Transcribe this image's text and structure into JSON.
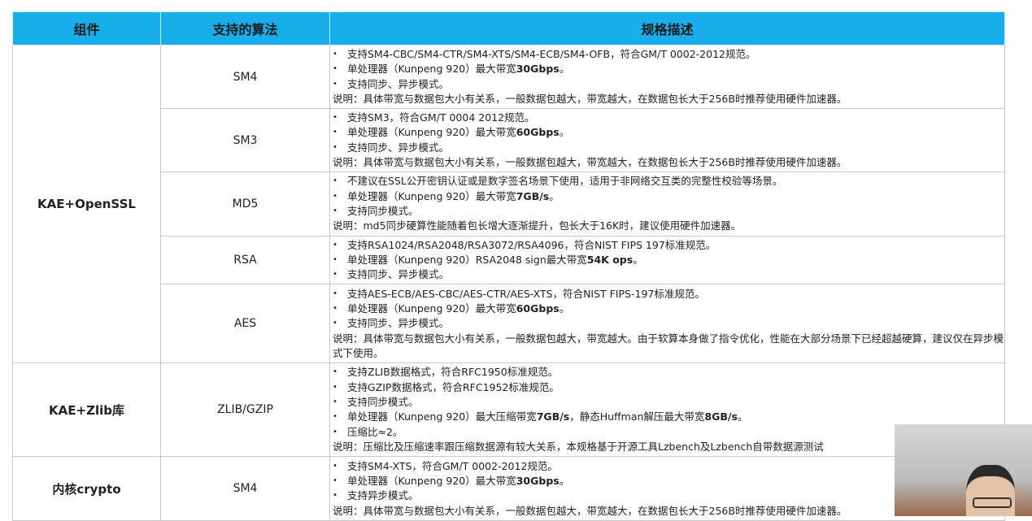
{
  "headers": [
    "组件",
    "支持的算法",
    "规格描述"
  ],
  "rows": [
    {
      "component": "KAE+OpenSSL",
      "span": 5,
      "algorithm": "SM4",
      "lines": [
        {
          "b": 1,
          "t": "支持SM4-CBC/SM4-CTR/SM4-XTS/SM4-ECB/SM4-OFB，符合GM/T 0002-2012规范。"
        },
        {
          "b": 1,
          "t": "单处理器（Kunpeng 920）最大带宽",
          "s": "30Gbps",
          "e": "。"
        },
        {
          "b": 1,
          "t": "支持同步、异步模式。"
        },
        {
          "t": "说明：具体带宽与数据包大小有关系，一般数据包越大，带宽越大，在数据包长大于256B时推荐使用硬件加速器。"
        }
      ]
    },
    {
      "algorithm": "SM3",
      "lines": [
        {
          "b": 1,
          "t": "支持SM3，符合GM/T 0004 2012规范。"
        },
        {
          "b": 1,
          "t": "单处理器（Kunpeng 920）最大带宽",
          "s": "60Gbps",
          "e": "。"
        },
        {
          "b": 1,
          "t": "支持同步、异步模式。"
        },
        {
          "t": "说明：具体带宽与数据包大小有关系，一般数据包越大，带宽越大，在数据包长大于256B时推荐使用硬件加速器。"
        }
      ]
    },
    {
      "algorithm": "MD5",
      "lines": [
        {
          "b": 1,
          "t": "不建议在SSL公开密钥认证或是数字签名场景下使用，适用于非网络交互类的完整性校验等场景。"
        },
        {
          "b": 1,
          "t": "单处理器（Kunpeng 920）最大带宽",
          "s": "7GB/s",
          "e": "。"
        },
        {
          "b": 1,
          "t": "支持同步模式。"
        },
        {
          "t": "说明：md5同步硬算性能随着包长增大逐渐提升，包长大于16K时，建议使用硬件加速器。"
        }
      ]
    },
    {
      "algorithm": "RSA",
      "lines": [
        {
          "b": 1,
          "t": "支持RSA1024/RSA2048/RSA3072/RSA4096，符合NIST FIPS 197标准规范。"
        },
        {
          "b": 1,
          "t": "单处理器（Kunpeng 920）RSA2048 sign最大带宽",
          "s": "54K ops",
          "e": "。"
        },
        {
          "b": 1,
          "t": "支持同步、异步模式。"
        }
      ]
    },
    {
      "algorithm": "AES",
      "lines": [
        {
          "b": 1,
          "t": "支持AES-ECB/AES-CBC/AES-CTR/AES-XTS，符合NIST FIPS-197标准规范。"
        },
        {
          "b": 1,
          "t": "单处理器（Kunpeng 920）最大带宽",
          "s": "60Gbps",
          "e": "。"
        },
        {
          "b": 1,
          "t": "支持同步、异步模式。"
        },
        {
          "t": "说明：具体带宽与数据包大小有关系，一般数据包越大，带宽越大。由于软算本身做了指令优化，性能在大部分场景下已经超越硬算，建议仅在异步模式下使用。"
        }
      ]
    },
    {
      "component": "KAE+Zlib库",
      "span": 1,
      "algorithm": "ZLIB/GZIP",
      "lines": [
        {
          "b": 1,
          "t": "支持ZLIB数据格式，符合RFC1950标准规范。"
        },
        {
          "b": 1,
          "t": "支持GZIP数据格式，符合RFC1952标准规范。"
        },
        {
          "b": 1,
          "t": "支持同步模式。"
        },
        {
          "b": 1,
          "t": "单处理器（Kunpeng 920）最大压缩带宽",
          "s": "7GB/s",
          "e": "，静态Huffman解压最大带宽",
          "s2": "8GB/s",
          "e2": "。"
        },
        {
          "b": 1,
          "t": "压缩比≈2。"
        },
        {
          "t": "说明：压缩比及压缩速率跟压缩数据源有较大关系，本规格基于开源工具Lzbench及Lzbench自带数据源测试"
        }
      ]
    },
    {
      "component": "内核crypto",
      "span": 1,
      "algorithm": "SM4",
      "lines": [
        {
          "b": 1,
          "t": "支持SM4-XTS，符合GM/T 0002-2012规范。"
        },
        {
          "b": 1,
          "t": "单处理器（Kunpeng 920）最大带宽",
          "s": "30Gbps",
          "e": "。"
        },
        {
          "b": 1,
          "t": "支持异步模式。"
        },
        {
          "t": "说明：具体带宽与数据包大小有关系，一般数据包越大，带宽越大，在数据包长大于256B时推荐使用硬件加速器。"
        }
      ]
    }
  ],
  "colors": {
    "header": "#18aeeb"
  }
}
